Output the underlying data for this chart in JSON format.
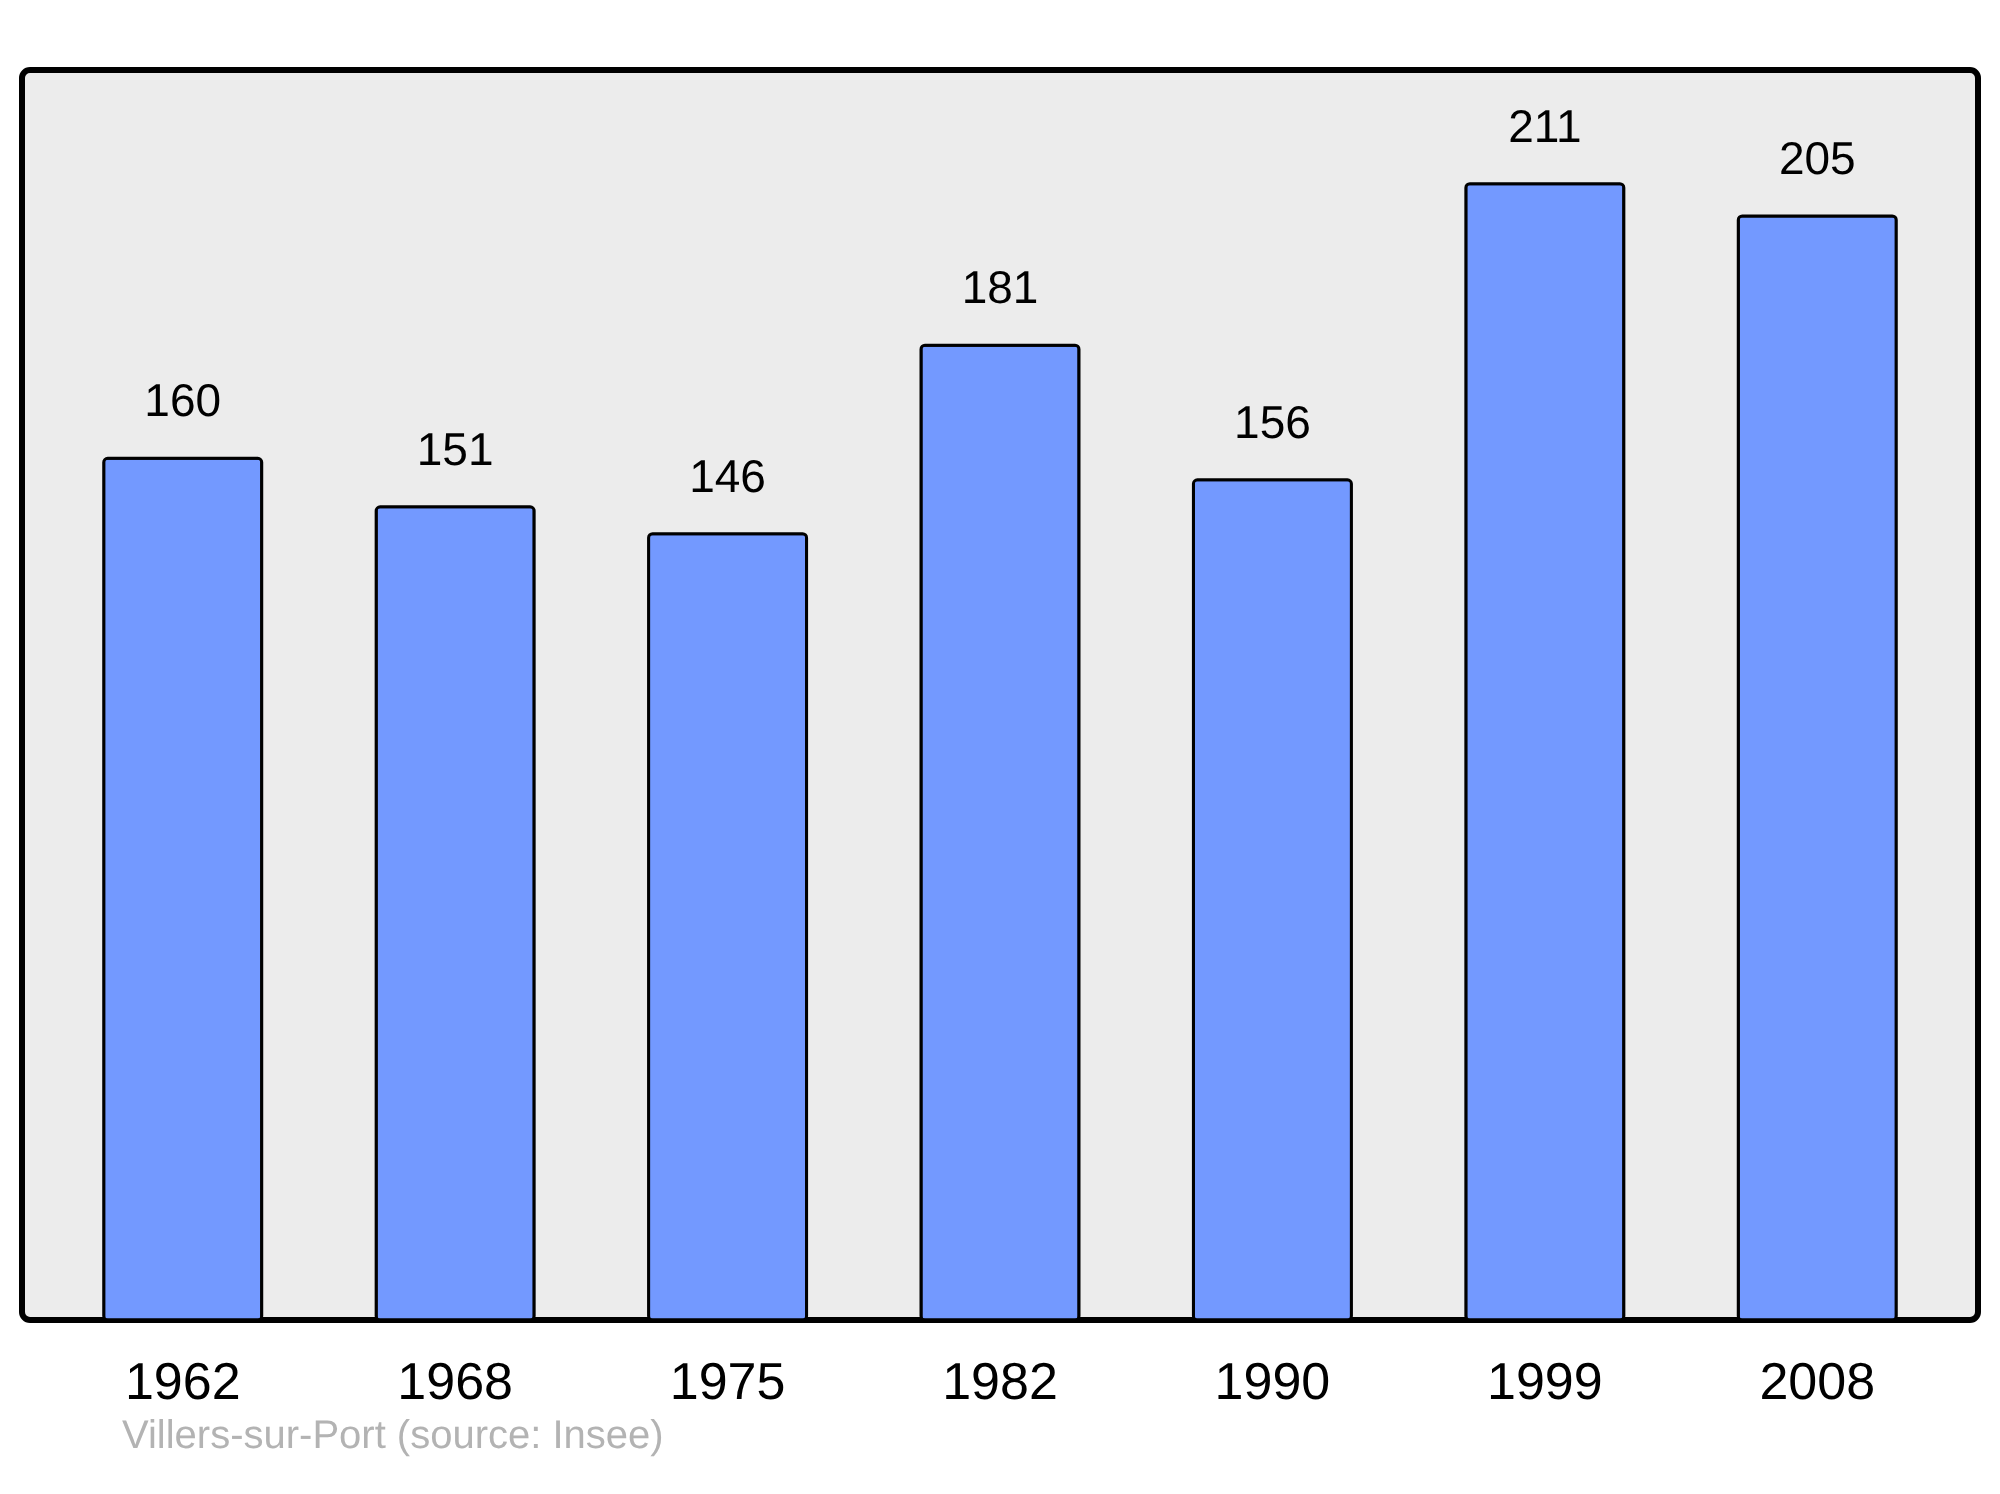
{
  "chart_data": {
    "type": "bar",
    "categories": [
      "1962",
      "1968",
      "1975",
      "1982",
      "1990",
      "1999",
      "2008"
    ],
    "values": [
      160,
      151,
      146,
      181,
      156,
      211,
      205
    ],
    "color": "#7399ff",
    "data_labels": true,
    "annotations": [
      "Villers-sur-Port    (source: Insee)"
    ]
  }
}
